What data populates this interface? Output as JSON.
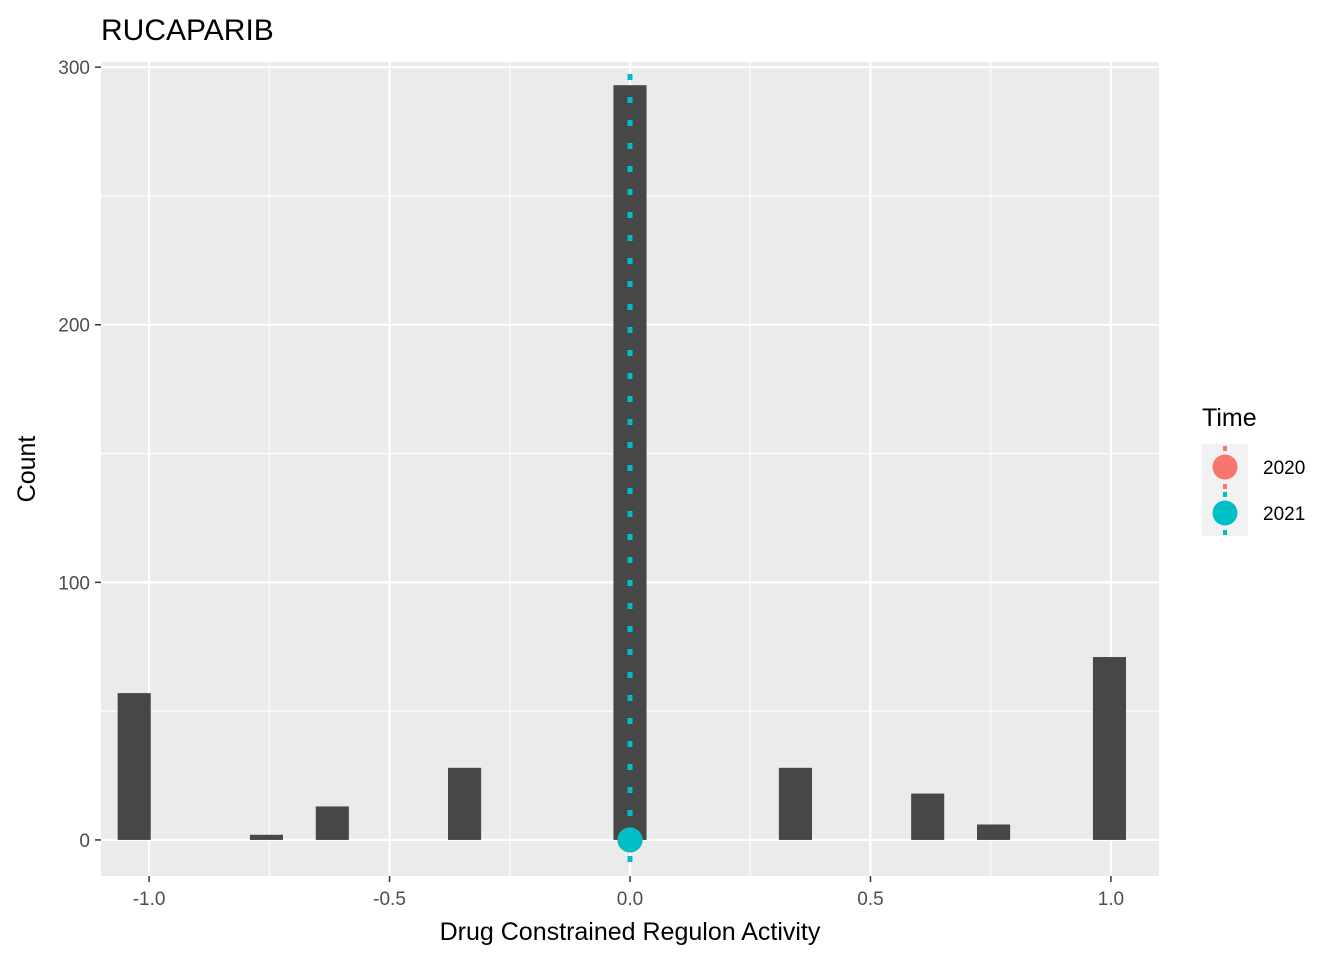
{
  "chart_data": {
    "type": "bar",
    "title": "RUCAPARIB",
    "xlabel": "Drug Constrained Regulon Activity",
    "ylabel": "Count",
    "xlim": [
      -1.1,
      1.1
    ],
    "ylim": [
      -14,
      302
    ],
    "x_ticks": [
      -1.0,
      -0.5,
      0.0,
      0.5,
      1.0
    ],
    "x_tick_labels": [
      "-1.0",
      "-0.5",
      "0.0",
      "0.5",
      "1.0"
    ],
    "y_ticks": [
      0,
      100,
      200,
      300
    ],
    "y_tick_labels": [
      "0",
      "100",
      "200",
      "300"
    ],
    "bin_width": 0.0688,
    "bins": [
      {
        "x": -1.031,
        "count": 57
      },
      {
        "x": -0.756,
        "count": 2
      },
      {
        "x": -0.619,
        "count": 13
      },
      {
        "x": -0.344,
        "count": 28
      },
      {
        "x": 0.0,
        "count": 293
      },
      {
        "x": 0.344,
        "count": 28
      },
      {
        "x": 0.619,
        "count": 18
      },
      {
        "x": 0.756,
        "count": 6
      },
      {
        "x": 0.997,
        "count": 71
      }
    ],
    "bar_color": "#474747",
    "series": [
      {
        "name": "2020",
        "x": 0.0,
        "y": 0,
        "color": "#F8766D"
      },
      {
        "name": "2021",
        "x": 0.0,
        "y": 0,
        "color": "#00BFC4"
      }
    ],
    "vline_style": "dotted",
    "legend": {
      "title": "Time",
      "position": "right"
    },
    "grid": true,
    "panel_background": "#EBEBEB"
  }
}
